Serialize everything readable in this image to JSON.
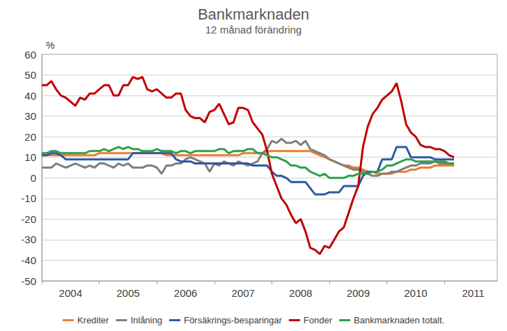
{
  "chart_data": {
    "type": "line",
    "title": "Bankmarknaden",
    "subtitle": "12 månad förändring",
    "ylabel": "%",
    "categories": [
      null,
      null,
      null,
      null,
      null,
      null,
      "2004",
      null,
      null,
      null,
      null,
      null,
      null,
      null,
      null,
      null,
      null,
      null,
      "2005",
      null,
      null,
      null,
      null,
      null,
      null,
      null,
      null,
      null,
      null,
      null,
      "2006",
      null,
      null,
      null,
      null,
      null,
      null,
      null,
      null,
      null,
      null,
      null,
      "2007",
      null,
      null,
      null,
      null,
      null,
      null,
      null,
      null,
      null,
      null,
      null,
      "2008",
      null,
      null,
      null,
      null,
      null,
      null,
      null,
      null,
      null,
      null,
      null,
      "2009",
      null,
      null,
      null,
      null,
      null,
      null,
      null,
      null,
      null,
      null,
      null,
      "2010",
      null,
      null,
      null,
      null,
      null,
      null,
      null,
      null,
      null,
      null,
      null,
      "2011",
      null,
      null,
      null,
      null,
      null
    ],
    "ylim": [
      -50,
      60
    ],
    "yticks": [
      -50,
      -40,
      -30,
      -20,
      -10,
      0,
      10,
      20,
      30,
      40,
      50,
      60
    ],
    "grid": true,
    "legend": "bottom",
    "series": [
      {
        "name": "Krediter",
        "color": "#ed7d31",
        "values": [
          11,
          11,
          11,
          11,
          11,
          11,
          11,
          11,
          11,
          11,
          11,
          11,
          12,
          12,
          12,
          12,
          12,
          12,
          12,
          12,
          12,
          12,
          12,
          12,
          12,
          12,
          11,
          11,
          11,
          11,
          11,
          11,
          11,
          11,
          11,
          11,
          11,
          11,
          11,
          11,
          11,
          11,
          12,
          12,
          12,
          12,
          12,
          13,
          13,
          13,
          13,
          13,
          13,
          13,
          13,
          13,
          13,
          12,
          11,
          10,
          9,
          8,
          7,
          6,
          6,
          5,
          5,
          4,
          3,
          3,
          2,
          2,
          2,
          2,
          3,
          3,
          3,
          4,
          4,
          5,
          5,
          5,
          6,
          6,
          6,
          6,
          6,
          null,
          null,
          null,
          null,
          null,
          null,
          null,
          null,
          null
        ]
      },
      {
        "name": "Inlåning",
        "color": "#7f7f7f",
        "values": [
          5,
          5,
          5,
          7,
          6,
          5,
          6,
          7,
          6,
          5,
          6,
          5,
          7,
          7,
          6,
          5,
          7,
          6,
          7,
          5,
          5,
          5,
          6,
          6,
          5,
          2,
          6,
          6,
          7,
          7,
          9,
          10,
          9,
          8,
          7,
          3,
          7,
          6,
          8,
          7,
          6,
          8,
          7,
          6,
          7,
          8,
          12,
          14,
          18,
          17,
          19,
          17,
          17,
          18,
          16,
          18,
          14,
          13,
          12,
          11,
          9,
          8,
          7,
          6,
          5,
          4,
          4,
          3,
          2,
          1,
          1,
          2,
          2,
          3,
          3,
          4,
          5,
          6,
          6,
          7,
          7,
          7,
          8,
          7,
          7,
          7,
          7,
          null,
          null,
          null,
          null,
          null,
          null,
          null,
          null,
          null
        ]
      },
      {
        "name": "Försäkrings-besparingar",
        "color": "#2e58a6",
        "values": [
          11,
          11,
          12,
          12,
          11,
          9,
          9,
          9,
          9,
          9,
          9,
          9,
          9,
          9,
          9,
          9,
          9,
          9,
          9,
          12,
          12,
          12,
          12,
          12,
          12,
          12,
          12,
          12,
          9,
          8,
          8,
          8,
          7,
          7,
          7,
          7,
          7,
          7,
          7,
          7,
          7,
          7,
          7,
          7,
          6,
          6,
          6,
          6,
          3,
          1,
          1,
          0,
          -2,
          -2,
          -2,
          -2,
          -5,
          -8,
          -8,
          -8,
          -7,
          -7,
          -7,
          -4,
          -4,
          -4,
          -4,
          1,
          3,
          3,
          3,
          9,
          9,
          9,
          15,
          15,
          15,
          10,
          10,
          10,
          10,
          10,
          9,
          9,
          9,
          9,
          9,
          null,
          null,
          null,
          null,
          null,
          null,
          null,
          null,
          null
        ]
      },
      {
        "name": "Fonder",
        "color": "#c00000",
        "values": [
          45,
          45,
          47,
          43,
          40,
          39,
          37,
          35,
          39,
          38,
          41,
          41,
          43,
          45,
          45,
          40,
          40,
          45,
          45,
          49,
          48,
          49,
          43,
          42,
          43,
          41,
          39,
          39,
          41,
          41,
          33,
          30,
          29,
          29,
          27,
          32,
          33,
          36,
          31,
          26,
          27,
          34,
          34,
          33,
          27,
          24,
          21,
          13,
          2,
          -4,
          -10,
          -13,
          -18,
          -22,
          -20,
          -26,
          -34,
          -35,
          -37,
          -33,
          -34,
          -30,
          -26,
          -24,
          -17,
          -10,
          -4,
          15,
          25,
          31,
          34,
          38,
          40,
          42,
          46,
          37,
          26,
          22,
          20,
          16,
          15,
          15,
          14,
          14,
          13,
          11,
          10,
          null,
          null,
          null,
          null,
          null,
          null,
          null,
          null,
          null
        ]
      },
      {
        "name": "Bankmarknaden totalt.",
        "color": "#2ea04a",
        "values": [
          12,
          12,
          13,
          13,
          12,
          12,
          12,
          12,
          12,
          12,
          13,
          13,
          13,
          14,
          13,
          14,
          15,
          14,
          15,
          14,
          14,
          13,
          13,
          13,
          14,
          13,
          13,
          13,
          12,
          13,
          13,
          12,
          13,
          13,
          13,
          13,
          13,
          14,
          14,
          12,
          13,
          13,
          13,
          14,
          14,
          12,
          12,
          11,
          10,
          10,
          9,
          8,
          6,
          6,
          5,
          5,
          3,
          2,
          1,
          2,
          0,
          0,
          0,
          0,
          1,
          1,
          2,
          2,
          2,
          3,
          3,
          4,
          6,
          6,
          7,
          8,
          9,
          9,
          8,
          8,
          8,
          8,
          8,
          8,
          8,
          7,
          7,
          null,
          null,
          null,
          null,
          null,
          null,
          null,
          null,
          null
        ]
      }
    ]
  }
}
